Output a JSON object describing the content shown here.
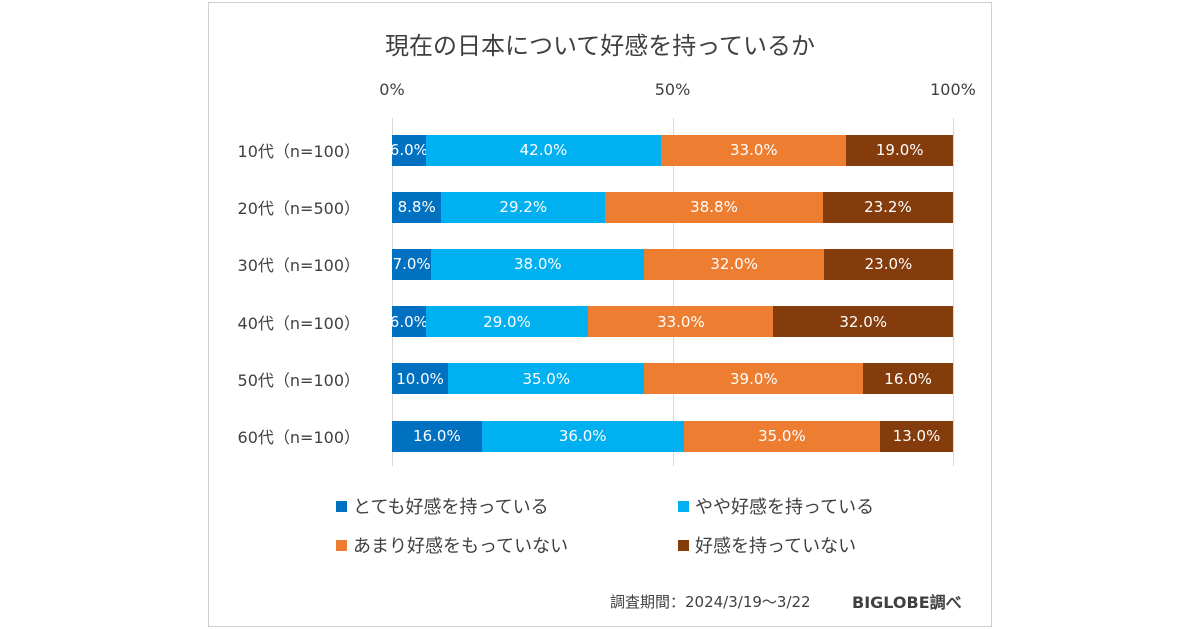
{
  "chart_data": {
    "type": "bar",
    "orientation": "horizontal",
    "stacked": "percent",
    "title": "現在の日本について好感を持っているか",
    "xlim": [
      0,
      100
    ],
    "x_ticks": [
      "0%",
      "50%",
      "100%"
    ],
    "grid": true,
    "legend_position": "bottom",
    "categories": [
      "10代（n=100）",
      "20代（n=500）",
      "30代（n=100）",
      "40代（n=100）",
      "50代（n=100）",
      "60代（n=100）"
    ],
    "series": [
      {
        "name": "とても好感を持っている",
        "color": "#0070c0",
        "values": [
          6.0,
          8.8,
          7.0,
          6.0,
          10.0,
          16.0
        ]
      },
      {
        "name": "やや好感を持っている",
        "color": "#00b0f0",
        "values": [
          42.0,
          29.2,
          38.0,
          29.0,
          35.0,
          36.0
        ]
      },
      {
        "name": "あまり好感をもっていない",
        "color": "#ed7d31",
        "values": [
          33.0,
          38.8,
          32.0,
          33.0,
          39.0,
          35.0
        ]
      },
      {
        "name": "好感を持っていない",
        "color": "#843c0c",
        "values": [
          19.0,
          23.2,
          23.0,
          32.0,
          16.0,
          13.0
        ]
      }
    ]
  },
  "footer": {
    "period": "調査期間：2024/3/19～3/22",
    "source": "BIGLOBE調べ"
  }
}
